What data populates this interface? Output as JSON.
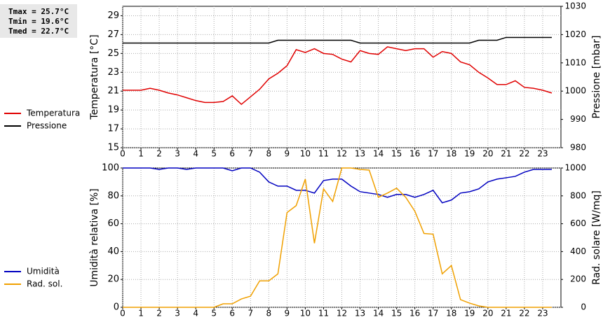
{
  "chart_data": [
    {
      "type": "line",
      "annotations": [
        "Tmax = 25.7°C",
        "Tmin = 19.6°C",
        "Tmed = 22.7°C"
      ],
      "ylabel": "Temperatura [°C]",
      "y2label": "Pressione [mbar]",
      "xlim": [
        0,
        24
      ],
      "xticks": [
        0,
        1,
        2,
        3,
        4,
        5,
        6,
        7,
        8,
        9,
        10,
        11,
        12,
        13,
        14,
        15,
        16,
        17,
        18,
        19,
        20,
        21,
        22,
        23
      ],
      "ylim": [
        15,
        30
      ],
      "yticks": [
        15,
        17,
        19,
        21,
        23,
        25,
        27,
        29
      ],
      "y2lim": [
        980,
        1030
      ],
      "y2ticks": [
        980,
        990,
        1000,
        1010,
        1020,
        1030
      ],
      "grid": true,
      "x": [
        0,
        0.5,
        1,
        1.5,
        2,
        2.5,
        3,
        3.5,
        4,
        4.5,
        5,
        5.5,
        6,
        6.5,
        7,
        7.5,
        8,
        8.5,
        9,
        9.5,
        10,
        10.5,
        11,
        11.5,
        12,
        12.5,
        13,
        13.5,
        14,
        14.5,
        15,
        15.5,
        16,
        16.5,
        17,
        17.5,
        18,
        18.5,
        19,
        19.5,
        20,
        20.5,
        21,
        21.5,
        22,
        22.5,
        23,
        23.5
      ],
      "series": [
        {
          "name": "Temperatura",
          "color": "#e00000",
          "axis": "y",
          "values": [
            21.1,
            21.1,
            21.1,
            21.3,
            21.1,
            20.8,
            20.6,
            20.3,
            20.0,
            19.8,
            19.8,
            19.9,
            20.5,
            19.6,
            20.4,
            21.2,
            22.3,
            22.9,
            23.7,
            25.4,
            25.1,
            25.5,
            25.0,
            24.9,
            24.4,
            24.1,
            25.3,
            25.0,
            24.9,
            25.7,
            25.5,
            25.3,
            25.5,
            25.5,
            24.6,
            25.2,
            25.0,
            24.1,
            23.8,
            23.0,
            22.4,
            21.7,
            21.7,
            22.1,
            21.4,
            21.3,
            21.1,
            20.8
          ]
        },
        {
          "name": "Pressione",
          "color": "#000000",
          "axis": "y2",
          "values": [
            1017,
            1017,
            1017,
            1017,
            1017,
            1017,
            1017,
            1017,
            1017,
            1017,
            1017,
            1017,
            1017,
            1017,
            1017,
            1017,
            1017,
            1018,
            1018,
            1018,
            1018,
            1018,
            1018,
            1018,
            1018,
            1018,
            1017,
            1017,
            1017,
            1017,
            1017,
            1017,
            1017,
            1017,
            1017,
            1017,
            1017,
            1017,
            1017,
            1018,
            1018,
            1018,
            1019,
            1019,
            1019,
            1019,
            1019,
            1019
          ]
        }
      ]
    },
    {
      "type": "line",
      "ylabel": "Umidità relativa [%]",
      "y2label": "Rad. solare [W/mq]",
      "xlim": [
        0,
        24
      ],
      "xticks": [
        0,
        1,
        2,
        3,
        4,
        5,
        6,
        7,
        8,
        9,
        10,
        11,
        12,
        13,
        14,
        15,
        16,
        17,
        18,
        19,
        20,
        21,
        22,
        23
      ],
      "ylim": [
        0,
        100
      ],
      "yticks": [
        0,
        20,
        40,
        60,
        80,
        100
      ],
      "y2lim": [
        0,
        1000
      ],
      "y2ticks": [
        0,
        200,
        400,
        600,
        800,
        1000
      ],
      "grid": true,
      "x": [
        0,
        0.5,
        1,
        1.5,
        2,
        2.5,
        3,
        3.5,
        4,
        4.5,
        5,
        5.5,
        6,
        6.5,
        7,
        7.5,
        8,
        8.5,
        9,
        9.5,
        10,
        10.5,
        11,
        11.5,
        12,
        12.5,
        13,
        13.5,
        14,
        14.5,
        15,
        15.5,
        16,
        16.5,
        17,
        17.5,
        18,
        18.5,
        19,
        19.5,
        20,
        20.5,
        21,
        21.5,
        22,
        22.5,
        23,
        23.5
      ],
      "series": [
        {
          "name": "Umidità",
          "color": "#0000c0",
          "axis": "y",
          "values": [
            100,
            100,
            100,
            100,
            99,
            100,
            100,
            99,
            100,
            100,
            100,
            100,
            98,
            100,
            100,
            97,
            90,
            87,
            87,
            84,
            84,
            82,
            91,
            92,
            92,
            87,
            83,
            82,
            81,
            79,
            81,
            81,
            79,
            81,
            84,
            75,
            77,
            82,
            83,
            85,
            90,
            92,
            93,
            94,
            97,
            99,
            99,
            99
          ]
        },
        {
          "name": "Rad. sol.",
          "color": "#f0a000",
          "axis": "y2",
          "values": [
            0,
            0,
            0,
            0,
            0,
            0,
            0,
            0,
            0,
            0,
            0,
            25,
            25,
            60,
            80,
            190,
            190,
            240,
            680,
            730,
            920,
            460,
            850,
            760,
            1000,
            1000,
            990,
            985,
            790,
            820,
            855,
            790,
            690,
            530,
            525,
            240,
            300,
            55,
            30,
            10,
            0,
            0,
            0,
            0,
            0,
            0,
            0,
            0
          ]
        }
      ]
    }
  ]
}
